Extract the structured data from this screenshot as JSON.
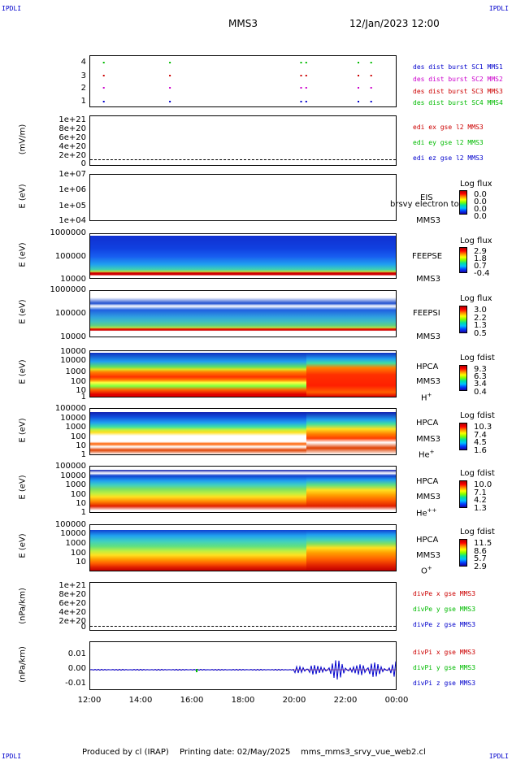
{
  "corners": {
    "tl": "IPDLI",
    "tr": "IPDLI",
    "bl": "IPDLI",
    "br": "IPDLI"
  },
  "header": {
    "mission": "MMS3",
    "datetime": "12/Jan/2023 12:00"
  },
  "footer": {
    "produced": "Produced by cl (IRAP)",
    "printing": "Printing date: 02/May/2025",
    "script": "mms_mms3_srvy_vue_web2.cl"
  },
  "colors": {
    "sc1": "#0000cc",
    "sc2": "#cc00cc",
    "sc3": "#cc0000",
    "sc4": "#00bb00",
    "x": "#cc0000",
    "y": "#00bb00",
    "z": "#0000cc"
  },
  "chart_data": {
    "type": "multi-panel time series / spectrograms",
    "x_axis": {
      "ticks": [
        "12:00",
        "14:00",
        "16:00",
        "18:00",
        "20:00",
        "22:00",
        "00:00"
      ],
      "range_hours": [
        12,
        24
      ]
    },
    "panels": [
      {
        "id": "burst",
        "yticks": [
          "4",
          "3",
          "2",
          "1"
        ],
        "legend": [
          "des dist burst SC1 MMS1",
          "des dist burst SC2 MMS2",
          "des dist burst SC3 MMS3",
          "des dist burst SC4 MMS4"
        ],
        "marks": [
          {
            "sc": 4,
            "t": [
              12.5,
              15.1,
              20.25,
              20.45,
              22.5,
              23.0
            ]
          },
          {
            "sc": 3,
            "t": [
              12.5,
              15.1,
              20.25,
              20.45,
              22.5,
              23.0
            ]
          },
          {
            "sc": 2,
            "t": [
              12.5,
              15.1,
              20.25,
              20.45,
              22.5,
              23.0
            ]
          },
          {
            "sc": 1,
            "t": [
              12.5,
              15.1,
              20.25,
              20.45,
              22.5,
              23.0
            ]
          }
        ]
      },
      {
        "id": "edi",
        "ylabel": "(mV/m)",
        "yticks": [
          "1e+21",
          "8e+20",
          "6e+20",
          "4e+20",
          "2e+20",
          "0"
        ],
        "legend": [
          "edi ex gse l2 MMS3",
          "edi ey gse l2 MMS3",
          "edi ez gse l2 MMS3"
        ]
      },
      {
        "id": "eis",
        "ylabel": "E (eV)",
        "yticks": [
          "1e+07",
          "1e+06",
          "1e+05",
          "1e+04"
        ],
        "inst": [
          "EIS",
          "MMS3"
        ],
        "overlay": "brsvy electron to",
        "cb_title": "Log flux",
        "cb_values": [
          "0.0",
          "0.0",
          "0.0",
          "0.0"
        ]
      },
      {
        "id": "feepse",
        "ylabel": "E (eV)",
        "yticks": [
          "1000000",
          "100000",
          "10000"
        ],
        "inst": [
          "FEEPSE",
          "MMS3"
        ],
        "cb_title": "Log flux",
        "cb_values": [
          "2.9",
          "1.8",
          "0.7",
          "-0.4"
        ]
      },
      {
        "id": "feepsi",
        "ylabel": "E (eV)",
        "yticks": [
          "1000000",
          "100000",
          "10000"
        ],
        "inst": [
          "FEEPSI",
          "MMS3"
        ],
        "cb_title": "Log flux",
        "cb_values": [
          "3.0",
          "2.2",
          "1.3",
          "0.5"
        ]
      },
      {
        "id": "hpca_h",
        "ylabel": "E (eV)",
        "yticks": [
          "10000",
          "1000",
          "100",
          "10",
          "1"
        ],
        "inst": [
          "HPCA",
          "MMS3"
        ],
        "species": "H",
        "species_sup": "+",
        "cb_title": "Log fdist",
        "cb_values": [
          "9.3",
          "6.3",
          "3.4",
          "0.4"
        ]
      },
      {
        "id": "hpca_he",
        "ylabel": "E (eV)",
        "yticks": [
          "100000",
          "10000",
          "1000",
          "100",
          "10",
          "1"
        ],
        "inst": [
          "HPCA",
          "MMS3"
        ],
        "species": "He",
        "species_sup": "+",
        "cb_title": "Log fdist",
        "cb_values": [
          "10.3",
          "7.4",
          "4.5",
          "1.6"
        ]
      },
      {
        "id": "hpca_hepp",
        "ylabel": "E (eV)",
        "yticks": [
          "100000",
          "10000",
          "1000",
          "100",
          "10",
          "1"
        ],
        "inst": [
          "HPCA",
          "MMS3"
        ],
        "species": "He",
        "species_sup": "++",
        "cb_title": "Log fdist",
        "cb_values": [
          "10.0",
          "7.1",
          "4.2",
          "1.3"
        ]
      },
      {
        "id": "hpca_o",
        "ylabel": "E (eV)",
        "yticks": [
          "100000",
          "10000",
          "1000",
          "100",
          "10"
        ],
        "inst": [
          "HPCA",
          "MMS3"
        ],
        "species": "O",
        "species_sup": "+",
        "cb_title": "Log fdist",
        "cb_values": [
          "11.5",
          "8.6",
          "5.7",
          "2.9"
        ]
      },
      {
        "id": "divpe",
        "ylabel": "(nPa/km)",
        "yticks": [
          "1e+21",
          "8e+20",
          "6e+20",
          "4e+20",
          "2e+20",
          "0"
        ],
        "legend": [
          "divPe x gse MMS3",
          "divPe y gse MMS3",
          "divPe z gse MMS3"
        ]
      },
      {
        "id": "divpi",
        "ylabel": "(nPa/km)",
        "yticks": [
          "0.01",
          "0.00",
          "-0.01"
        ],
        "legend": [
          "divPi x gse MMS3",
          "divPi y gse MMS3",
          "divPi z gse MMS3"
        ]
      }
    ]
  }
}
